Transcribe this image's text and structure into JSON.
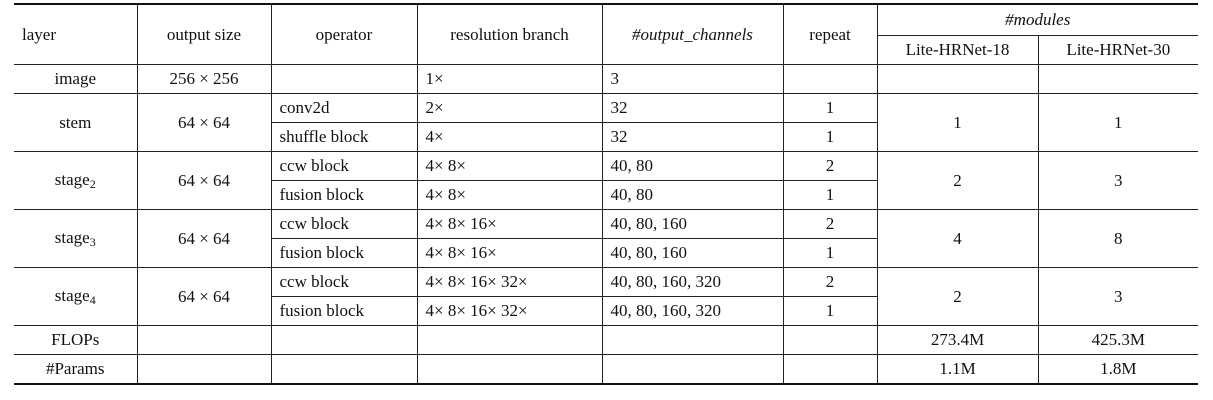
{
  "headers": {
    "layer": "layer",
    "output_size": "output size",
    "operator": "operator",
    "resolution_branch": "resolution branch",
    "output_channels": "#output_channels",
    "repeat": "repeat",
    "modules": "#modules",
    "lite18": "Lite-HRNet-18",
    "lite30": "Lite-HRNet-30"
  },
  "image_row": {
    "layer": "image",
    "output_size": "256 × 256",
    "resolution": "1×",
    "channels": "3"
  },
  "stages": [
    {
      "layer": "stem",
      "layer_sub": "",
      "output_size": "64 × 64",
      "m18": "1",
      "m30": "1",
      "ops": [
        {
          "operator": "conv2d",
          "resolution": "2×",
          "channels": "32",
          "repeat": "1"
        },
        {
          "operator": "shuffle block",
          "resolution": "4×",
          "channels": "32",
          "repeat": "1"
        }
      ]
    },
    {
      "layer": "stage",
      "layer_sub": "2",
      "output_size": "64 × 64",
      "m18": "2",
      "m30": "3",
      "ops": [
        {
          "operator": "ccw block",
          "resolution": "4× 8×",
          "channels": "40, 80",
          "repeat": "2"
        },
        {
          "operator": "fusion block",
          "resolution": "4× 8×",
          "channels": "40, 80",
          "repeat": "1"
        }
      ]
    },
    {
      "layer": "stage",
      "layer_sub": "3",
      "output_size": "64 × 64",
      "m18": "4",
      "m30": "8",
      "ops": [
        {
          "operator": "ccw block",
          "resolution": "4× 8× 16×",
          "channels": "40, 80, 160",
          "repeat": "2"
        },
        {
          "operator": "fusion block",
          "resolution": "4× 8× 16×",
          "channels": "40, 80, 160",
          "repeat": "1"
        }
      ]
    },
    {
      "layer": "stage",
      "layer_sub": "4",
      "output_size": "64 × 64",
      "m18": "2",
      "m30": "3",
      "ops": [
        {
          "operator": "ccw block",
          "resolution": "4× 8× 16× 32×",
          "channels": "40, 80, 160, 320",
          "repeat": "2"
        },
        {
          "operator": "fusion block",
          "resolution": "4× 8× 16× 32×",
          "channels": "40, 80, 160, 320",
          "repeat": "1"
        }
      ]
    }
  ],
  "flops": {
    "label": "FLOPs",
    "m18": "273.4M",
    "m30": "425.3M"
  },
  "params": {
    "label": "#Params",
    "m18": "1.1M",
    "m30": "1.8M"
  }
}
